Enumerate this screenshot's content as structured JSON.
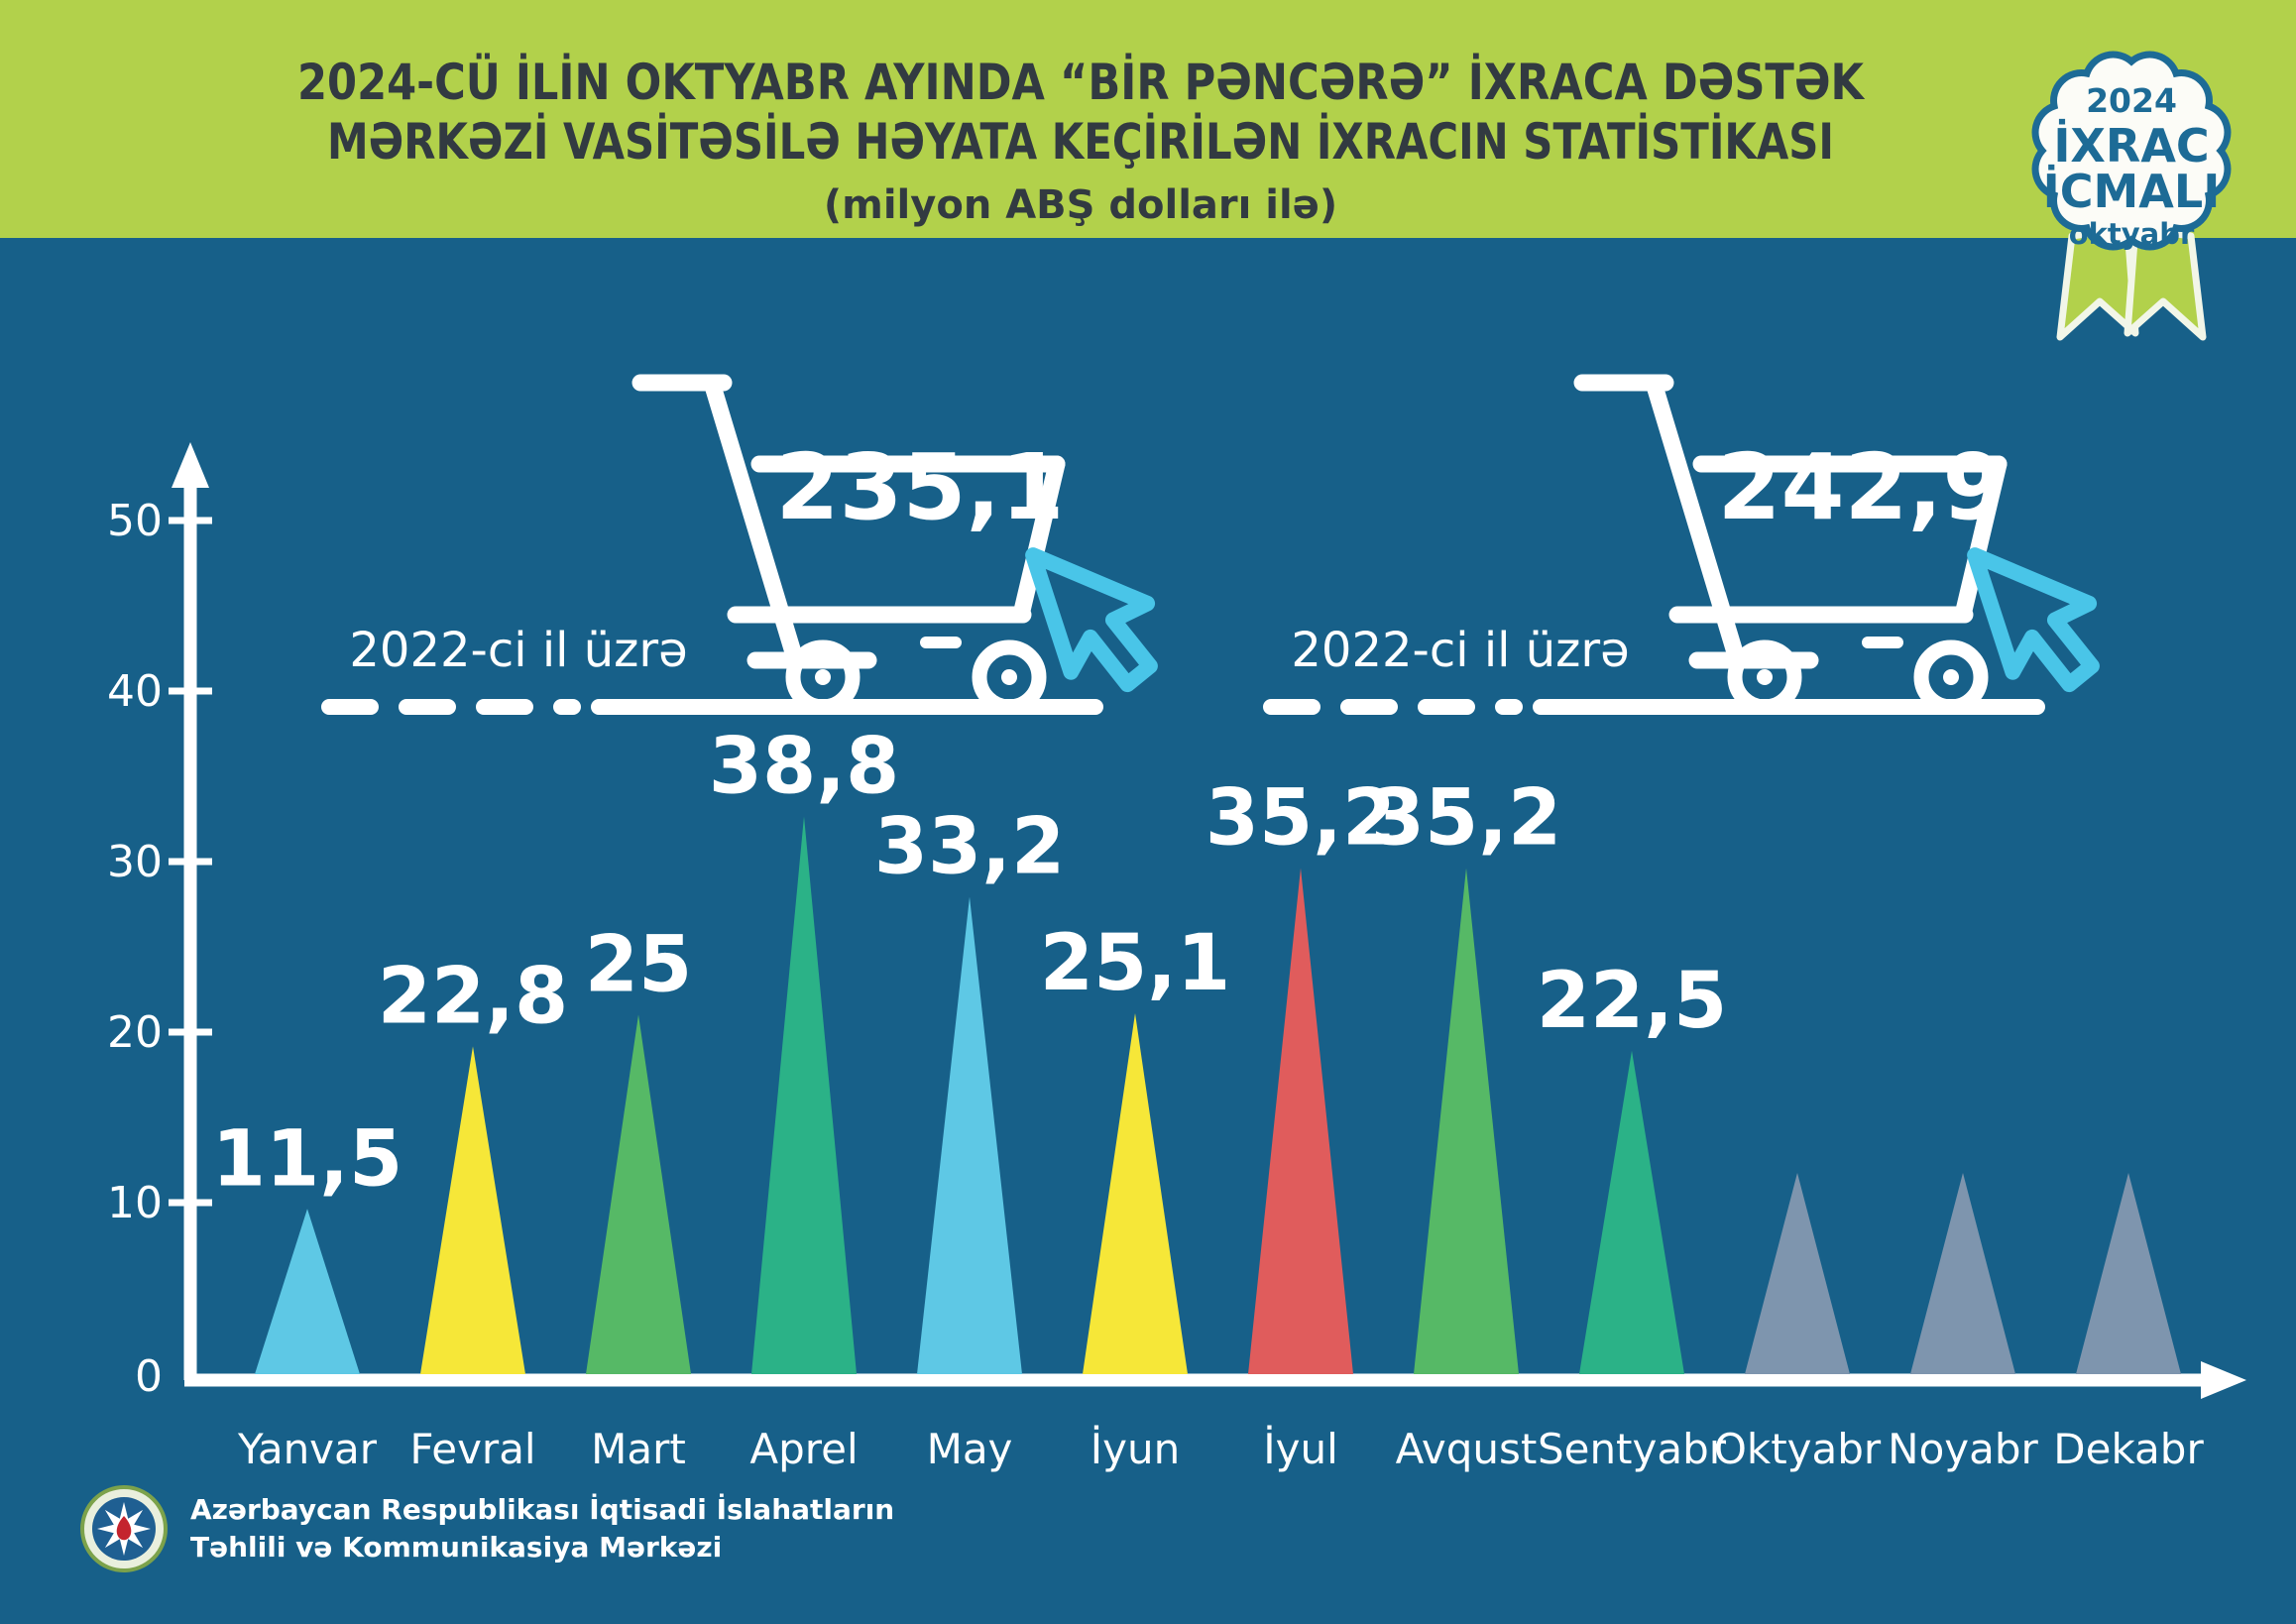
{
  "header": {
    "title_line1": "2024-CÜ İLİN OKTYABR AYINDA “BİR PƏNCƏRƏ” İXRACA DƏSTƏK",
    "title_line2": "MƏRKƏZİ VASİTƏSİLƏ HƏYATA KEÇİRİLƏN İXRACIN STATİSTİKASI",
    "title_line3": "(milyon ABŞ dolları ilə)",
    "badge": {
      "year": "2024",
      "word1": "İXRAC",
      "word2": "İCMALI",
      "month": "oktyabr"
    }
  },
  "annotations": {
    "cart_left": {
      "value": "235,1",
      "ref_label": "2022-ci il üzrə"
    },
    "cart_right": {
      "value": "242,9",
      "ref_label": "2022-ci il üzrə"
    }
  },
  "footer": {
    "org_line1": "Azərbaycan Respublikası İqtisadi İslahatların",
    "org_line2": "Təhlili və Kommunikasiya Mərkəzi"
  },
  "colors": {
    "header_band": "#b2d14b",
    "background": "#176089",
    "title_text": "#323a41",
    "badge_teal": "#1d6b96",
    "cursor_blue": "#49c5e8",
    "white": "#ffffff",
    "light_blue": "#5ec8e5",
    "yellow": "#f6e738",
    "green": "#56b966",
    "teal_green": "#2bb287",
    "red": "#e05c5c",
    "gray_blue": "#7e95ae"
  },
  "chart_data": {
    "type": "bar",
    "shape": "triangle-peaks",
    "title": "2024-cü ilin oktyabr ayında “Bir pəncərə” ixraca dəstək mərkəzi vasitəsilə həyata keçirilən ixracın statistikası",
    "units": "milyon ABŞ dolları ilə",
    "xlabel": "",
    "ylabel": "",
    "ylim": [
      0,
      53
    ],
    "y_ticks": [
      0,
      10,
      20,
      30,
      40,
      50
    ],
    "legend_position": "none",
    "grid": false,
    "placeholder_units": 14,
    "categories": [
      "Yanvar",
      "Fevral",
      "Mart",
      "Aprel",
      "May",
      "İyun",
      "İyul",
      "Avqust",
      "Sentyabr",
      "Oktyabr",
      "Noyabr",
      "Dekabr"
    ],
    "values": [
      11.5,
      22.8,
      25,
      38.8,
      33.2,
      25.1,
      35.2,
      35.2,
      22.5,
      null,
      null,
      null
    ],
    "months": [
      {
        "name": "Yanvar",
        "value": 11.5,
        "label": "11,5",
        "color": "#5ec8e5"
      },
      {
        "name": "Fevral",
        "value": 22.8,
        "label": "22,8",
        "color": "#f6e738"
      },
      {
        "name": "Mart",
        "value": 25,
        "label": "25",
        "color": "#56b966"
      },
      {
        "name": "Aprel",
        "value": 38.8,
        "label": "38,8",
        "color": "#2bb287"
      },
      {
        "name": "May",
        "value": 33.2,
        "label": "33,2",
        "color": "#5ec8e5"
      },
      {
        "name": "İyun",
        "value": 25.1,
        "label": "25,1",
        "color": "#f6e738"
      },
      {
        "name": "İyul",
        "value": 35.2,
        "label": "35,2",
        "color": "#e05c5c"
      },
      {
        "name": "Avqust",
        "value": 35.2,
        "label": "35,2",
        "color": "#56b966"
      },
      {
        "name": "Sentyabr",
        "value": 22.5,
        "label": "22,5",
        "color": "#2bb287"
      },
      {
        "name": "Oktyabr",
        "value": null,
        "label": "",
        "color": "#7e95ae"
      },
      {
        "name": "Noyabr",
        "value": null,
        "label": "",
        "color": "#7e95ae"
      },
      {
        "name": "Dekabr",
        "value": null,
        "label": "",
        "color": "#7e95ae"
      }
    ],
    "reference_annotations": [
      {
        "label": "2022-ci il üzrə",
        "value": "235,1"
      },
      {
        "label": "2022-ci il üzrə",
        "value": "242,9"
      }
    ]
  }
}
